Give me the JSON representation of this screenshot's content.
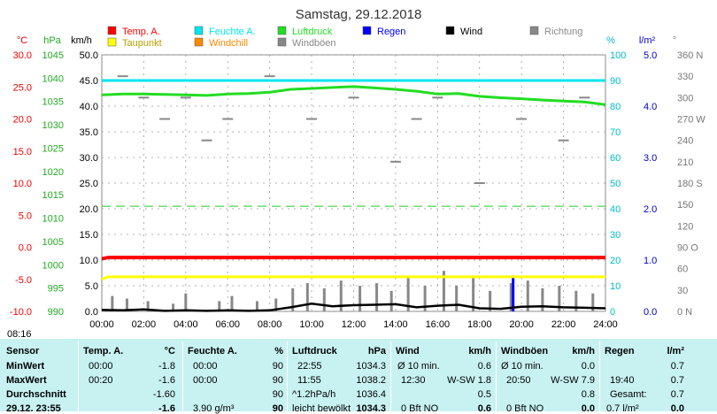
{
  "title": "Samstag, 29.12.2018",
  "status_time": "08:16",
  "colors": {
    "temp": "#ff0000",
    "humidity": "#00e5ee",
    "pressure": "#22dd22",
    "rain": "#0000ff",
    "wind": "#000000",
    "direction": "#888888",
    "dewpoint": "#ffff00",
    "windchill": "#ff8800",
    "gusts": "#888888"
  },
  "legend": [
    {
      "key": "temp",
      "label": "Temp. A.",
      "color": "#ff0000"
    },
    {
      "key": "humidity",
      "label": "Feuchte A.",
      "color": "#00e5ee"
    },
    {
      "key": "pressure",
      "label": "Luftdruck",
      "color": "#22dd22"
    },
    {
      "key": "rain",
      "label": "Regen",
      "color": "#0000ff"
    },
    {
      "key": "wind",
      "label": "Wind",
      "color": "#000000"
    },
    {
      "key": "direction",
      "label": "Richtung",
      "color": "#888888"
    },
    {
      "key": "dewpoint",
      "label": "Taupunkt",
      "color": "#ffff00"
    },
    {
      "key": "windchill",
      "label": "Windchill",
      "color": "#ff8800"
    },
    {
      "key": "gusts",
      "label": "Windböen",
      "color": "#888888"
    }
  ],
  "chart_data": {
    "type": "line",
    "title": "Samstag, 29.12.2018",
    "x_ticks": [
      "00:00",
      "02:00",
      "04:00",
      "06:00",
      "08:00",
      "10:00",
      "12:00",
      "14:00",
      "16:00",
      "18:00",
      "20:00",
      "22:00",
      "24:00"
    ],
    "axes": {
      "temp": {
        "unit": "°C",
        "ticks": [
          "30.0",
          "25.0",
          "20.0",
          "15.0",
          "10.0",
          "5.0",
          "0.0",
          "-5.0",
          "-10.0"
        ],
        "range": [
          -10,
          30
        ]
      },
      "pressure": {
        "unit": "hPa",
        "ticks": [
          "1045",
          "1040",
          "1035",
          "1030",
          "1025",
          "1020",
          "1015",
          "1010",
          "1005",
          "1000",
          "995",
          "990"
        ],
        "range": [
          990,
          1045
        ]
      },
      "wind": {
        "unit": "km/h",
        "ticks": [
          "50.0",
          "45.0",
          "40.0",
          "35.0",
          "30.0",
          "25.0",
          "20.0",
          "15.0",
          "10.0",
          "5.0",
          "0.0"
        ],
        "range": [
          0,
          50
        ]
      },
      "humidity": {
        "unit": "%",
        "ticks": [
          "100",
          "90",
          "80",
          "70",
          "60",
          "50",
          "40",
          "30",
          "20",
          "10",
          "0"
        ],
        "range": [
          0,
          100
        ]
      },
      "rain": {
        "unit": "l/m²",
        "ticks": [
          "5.0",
          "4.0",
          "3.0",
          "2.0",
          "1.0",
          "0.0"
        ],
        "range": [
          0,
          5
        ]
      },
      "direction": {
        "unit": "°",
        "ticks": [
          "360 N",
          "330",
          "300",
          "270 W",
          "240",
          "210",
          "180 S",
          "150",
          "120",
          "90 O",
          "60",
          "30",
          "0 N"
        ],
        "range": [
          0,
          360
        ]
      }
    },
    "series": [
      {
        "name": "Temp. A.",
        "axis": "temp",
        "x": [
          0,
          0.3,
          24
        ],
        "y": [
          -1.8,
          -1.6,
          -1.6
        ]
      },
      {
        "name": "Taupunkt",
        "axis": "temp",
        "x": [
          0,
          0.3,
          24
        ],
        "y": [
          -5.0,
          -4.6,
          -4.6
        ]
      },
      {
        "name": "Feuchte A.",
        "axis": "humidity",
        "x": [
          0,
          24
        ],
        "y": [
          90,
          90
        ]
      },
      {
        "name": "Luftdruck",
        "axis": "pressure",
        "x": [
          0,
          1,
          2,
          3,
          4,
          5,
          6,
          7,
          8,
          9,
          10,
          11,
          12,
          13,
          14,
          15,
          16,
          17,
          18,
          19,
          20,
          21,
          22,
          23,
          24
        ],
        "y": [
          1036.4,
          1036.6,
          1036.6,
          1036.5,
          1036.4,
          1036.3,
          1036.6,
          1036.7,
          1037.0,
          1037.6,
          1037.8,
          1038.0,
          1038.2,
          1037.9,
          1037.6,
          1037.2,
          1036.6,
          1036.7,
          1036.1,
          1035.8,
          1035.6,
          1035.3,
          1035.1,
          1034.9,
          1034.3
        ]
      },
      {
        "name": "Wind",
        "axis": "wind",
        "x": [
          0,
          1,
          2,
          3,
          4,
          5,
          6,
          7,
          8,
          9,
          10,
          11,
          12,
          13,
          14,
          15,
          16,
          17,
          18,
          19,
          20,
          21,
          22,
          23,
          24
        ],
        "y": [
          0.3,
          0.2,
          0.4,
          0.1,
          0.2,
          0.1,
          0.2,
          0.1,
          0.2,
          0.8,
          1.5,
          1.0,
          1.2,
          1.3,
          1.4,
          0.8,
          1.1,
          1.3,
          0.6,
          0.5,
          0.9,
          1.0,
          0.8,
          0.7,
          0.6
        ]
      },
      {
        "name": "Windböen",
        "axis": "wind",
        "x": [
          0.5,
          1.2,
          2.2,
          3.4,
          4.0,
          5.6,
          6.2,
          7.4,
          8.3,
          9.1,
          9.8,
          10.6,
          11.4,
          12.3,
          13.1,
          13.8,
          14.6,
          15.4,
          16.3,
          16.9,
          17.7,
          18.5,
          19.5,
          20.3,
          21.0,
          21.8,
          22.6,
          23.4
        ],
        "y": [
          3.0,
          2.5,
          2.0,
          1.5,
          3.5,
          2.0,
          3.0,
          2.0,
          2.5,
          4.5,
          5.5,
          4.5,
          6.0,
          5.0,
          5.5,
          4.0,
          6.5,
          5.0,
          7.9,
          5.0,
          6.5,
          4.0,
          5.5,
          6.0,
          4.5,
          5.0,
          4.0,
          3.5
        ]
      },
      {
        "name": "Regen",
        "axis": "rain",
        "x": [
          19.6
        ],
        "y": [
          0.7
        ]
      },
      {
        "name": "Richtung",
        "axis": "direction",
        "x": [
          1,
          2,
          3,
          4,
          5,
          6,
          8,
          10,
          12,
          14,
          15,
          16,
          18,
          20,
          22,
          23
        ],
        "y": [
          330,
          300,
          270,
          300,
          240,
          270,
          330,
          270,
          300,
          210,
          270,
          300,
          180,
          270,
          240,
          300
        ]
      }
    ]
  },
  "stats": {
    "sensor": {
      "header": "Sensor",
      "rows": [
        "MinWert",
        "MaxWert",
        "Durchschnitt",
        "29.12. 23:55"
      ]
    },
    "temp": {
      "header": "Temp. A.",
      "unit": "°C",
      "rows": [
        [
          "00:00",
          "-1.8"
        ],
        [
          "00:20",
          "-1.6"
        ],
        [
          "",
          "-1.60"
        ],
        [
          "",
          "-1.6"
        ]
      ]
    },
    "humidity": {
      "header": "Feuchte A.",
      "unit": "%",
      "rows": [
        [
          "00:00",
          "90"
        ],
        [
          "00:00",
          "90"
        ],
        [
          "",
          "90"
        ],
        [
          "3.90 g/m³",
          "90"
        ]
      ]
    },
    "pressure": {
      "header": "Luftdruck",
      "unit": "hPa",
      "rows": [
        [
          "22:55",
          "1034.3"
        ],
        [
          "11:55",
          "1038.2"
        ],
        [
          "^1.2hPa/h",
          "1036.4"
        ],
        [
          "leicht bewölkt",
          "1034.3"
        ]
      ]
    },
    "wind": {
      "header": "Wind",
      "unit": "km/h",
      "rows": [
        [
          "Ø 10 min.",
          "",
          "0.6"
        ],
        [
          "12:30",
          "W-SW 1.8",
          ""
        ],
        [
          "",
          "",
          "0.5"
        ],
        [
          "0 Bft NO",
          "",
          "0.6"
        ]
      ]
    },
    "gusts": {
      "header": "Windböen",
      "unit": "km/h",
      "rows": [
        [
          "Ø 10 min.",
          "",
          "0.0"
        ],
        [
          "20:50",
          "W-SW 7.9",
          ""
        ],
        [
          "",
          "",
          "0.8"
        ],
        [
          "0 Bft NO",
          "",
          "0.0"
        ]
      ]
    },
    "rain": {
      "header": "Regen",
      "unit": "l/m²",
      "rows": [
        [
          "",
          "0.7"
        ],
        [
          "19:40",
          "0.7"
        ],
        [
          "Gesamt:",
          "0.7"
        ],
        [
          "0.7 l/m²",
          "0.0"
        ]
      ]
    }
  }
}
